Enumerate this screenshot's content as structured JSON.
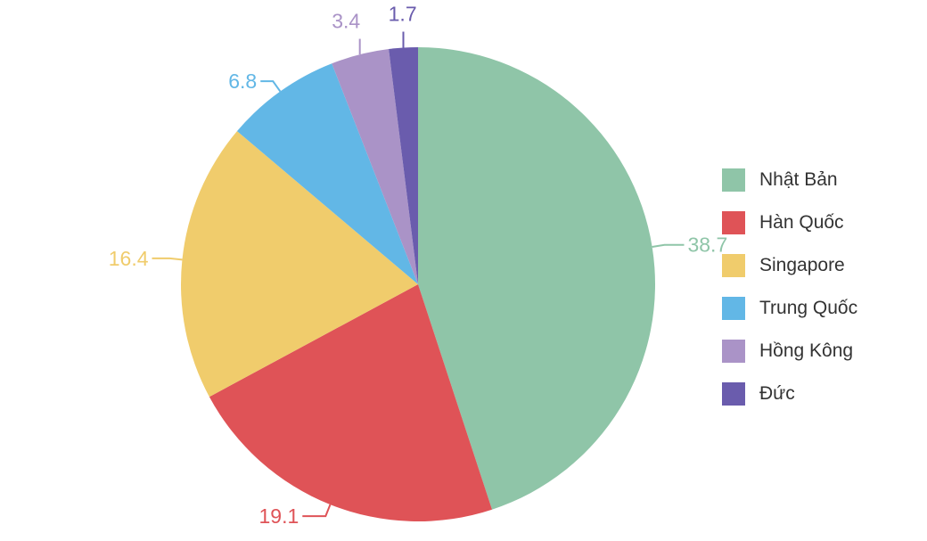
{
  "chart_data": {
    "type": "pie",
    "title": "",
    "slices": [
      {
        "name": "Nhật Bản",
        "value": 38.7,
        "label": "38.7",
        "color": "#8fc5a8"
      },
      {
        "name": "Hàn Quốc",
        "value": 19.1,
        "label": "19.1",
        "color": "#df5357"
      },
      {
        "name": "Singapore",
        "value": 16.4,
        "label": "16.4",
        "color": "#f0cc6c"
      },
      {
        "name": "Trung Quốc",
        "value": 6.8,
        "label": "6.8",
        "color": "#62b7e6"
      },
      {
        "name": "Hồng Kông",
        "value": 3.4,
        "label": "3.4",
        "color": "#aa93c7"
      },
      {
        "name": "Đức",
        "value": 1.7,
        "label": "1.7",
        "color": "#6a5cad"
      }
    ],
    "start": "12 o'clock",
    "direction": "clockwise",
    "legend_position": "right"
  }
}
